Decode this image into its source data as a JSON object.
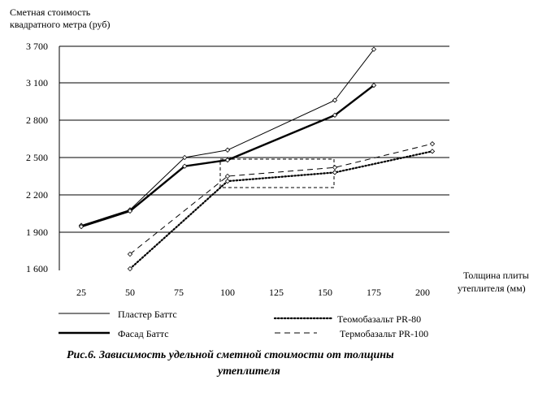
{
  "chart_data": {
    "type": "line",
    "ylabel": [
      "Сметная стоимость",
      "квадратного метра (руб)"
    ],
    "xlabel": [
      "Толщина плиты",
      "утеплителя (мм)"
    ],
    "y_ticks": [
      "3 700",
      "3 100",
      "2 800",
      "2 500",
      "2 200",
      "1 900",
      "1 600"
    ],
    "x_ticks": [
      "25",
      "50",
      "75",
      "100",
      "125",
      "150",
      "175",
      "200"
    ],
    "grid": "horizontal",
    "series": [
      {
        "name": "Пластер Баттс",
        "style": "thin-solid",
        "marker": "diamond",
        "x": [
          25,
          50,
          78,
          100,
          155,
          175
        ],
        "y": [
          1955,
          2080,
          2500,
          2560,
          2960,
          3650
        ]
      },
      {
        "name": "Фасад Баттс",
        "style": "thick-solid",
        "marker": "diamond",
        "x": [
          25,
          50,
          78,
          100,
          155,
          175
        ],
        "y": [
          1945,
          2070,
          2430,
          2480,
          2840,
          3080
        ]
      },
      {
        "name": "Теомобазальт PR-80",
        "style": "dotted",
        "marker": "diamond",
        "x": [
          50,
          100,
          155,
          205
        ],
        "y": [
          1600,
          2310,
          2380,
          2550
        ]
      },
      {
        "name": "Термобазальт PR-100",
        "style": "dashed",
        "marker": "diamond",
        "x": [
          50,
          100,
          155,
          205
        ],
        "y": [
          1720,
          2350,
          2420,
          2610
        ]
      }
    ],
    "annotations": [
      "dashed rectangle"
    ],
    "caption": [
      "Рис.6. Зависимость удельной сметной стоимости от толщины",
      "утеплителя"
    ]
  }
}
